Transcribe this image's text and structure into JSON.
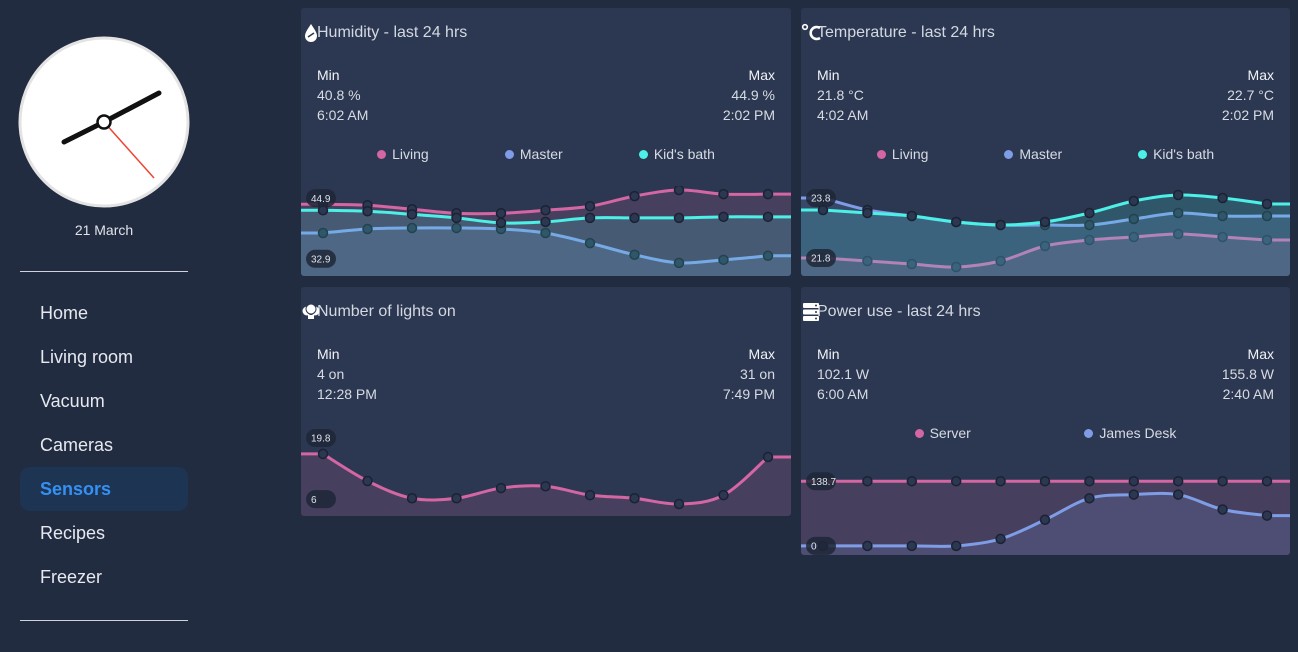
{
  "sidebar": {
    "date": "21 March",
    "nav": [
      "Home",
      "Living room",
      "Vacuum",
      "Cameras",
      "Sensors",
      "Recipes",
      "Freezer"
    ],
    "active": 4
  },
  "cards": [
    {
      "title": "Humidity - last 24 hrs",
      "min_label": "Min",
      "max_label": "Max",
      "min_value": "40.8 %",
      "min_time": "6:02 AM",
      "max_value": "44.9 %",
      "max_time": "2:02 PM",
      "chart_data": {
        "type": "line",
        "ylim": [
          29.5,
          47.3
        ],
        "yticks": [
          32.9,
          44.9
        ],
        "series": [
          {
            "name": "Living",
            "color": "#d466a3",
            "values": [
              43.7,
              43.5,
              42.7,
              41.9,
              41.9,
              42.5,
              43.3,
              45.3,
              46.5,
              45.7,
              45.7
            ]
          },
          {
            "name": "Master",
            "color": "#7f9de6",
            "values": [
              38.0,
              38.8,
              39.0,
              39.0,
              38.8,
              38.0,
              36.0,
              33.7,
              32.1,
              32.7,
              33.5
            ]
          },
          {
            "name": "Kid's bath",
            "color": "#4cf0e6",
            "values": [
              42.5,
              42.3,
              41.7,
              41.0,
              40.0,
              40.2,
              41.0,
              41.0,
              41.0,
              41.2,
              41.2
            ]
          }
        ]
      }
    },
    {
      "title": "Temperature - last 24 hrs",
      "min_label": "Min",
      "max_label": "Max",
      "min_value": "21.8 °C",
      "min_time": "4:02 AM",
      "max_value": "22.7 °C",
      "max_time": "2:02 PM",
      "chart_data": {
        "type": "line",
        "ylim": [
          21.2,
          24.2
        ],
        "yticks": [
          21.8,
          23.8
        ],
        "series": [
          {
            "name": "Living",
            "color": "#d466a3",
            "values": [
              21.8,
              21.7,
              21.6,
              21.5,
              21.7,
              22.2,
              22.4,
              22.5,
              22.6,
              22.5,
              22.4
            ]
          },
          {
            "name": "Master",
            "color": "#7f9de6",
            "values": [
              23.8,
              23.4,
              23.2,
              23.0,
              22.9,
              22.9,
              22.9,
              23.1,
              23.3,
              23.2,
              23.2
            ]
          },
          {
            "name": "Kid's bath",
            "color": "#4cf0e6",
            "values": [
              23.4,
              23.3,
              23.2,
              23.0,
              22.9,
              23.0,
              23.3,
              23.7,
              23.9,
              23.8,
              23.6
            ]
          }
        ]
      }
    },
    {
      "title": "Number of lights on",
      "min_label": "Min",
      "max_label": "Max",
      "min_value": "4 on",
      "min_time": "12:28 PM",
      "max_value": "31 on",
      "max_time": "7:49 PM",
      "chart_data": {
        "type": "line",
        "ylim": [
          2.2,
          22.5
        ],
        "yticks": [
          6,
          19.8
        ],
        "series": [
          {
            "color": "#d466a3",
            "values": [
              16.2,
              10.1,
              6.2,
              6.2,
              8.5,
              8.9,
              6.9,
              6.2,
              4.9,
              6.9,
              15.5
            ]
          }
        ]
      }
    },
    {
      "title": "Power use - last 24 hrs",
      "min_label": "Min",
      "max_label": "Max",
      "min_value": "102.1 W",
      "min_time": "6:00 AM",
      "max_value": "155.8 W",
      "max_time": "2:40 AM",
      "chart_data": {
        "type": "line",
        "ylim": [
          -19.5,
          173.4
        ],
        "yticks": [
          0,
          138.7
        ],
        "series": [
          {
            "name": "Server",
            "color": "#d466a3",
            "values": [
              138.7,
              138.7,
              138.7,
              138.7,
              138.7,
              138.7,
              138.7,
              138.7,
              138.7,
              138.7,
              138.7
            ]
          },
          {
            "name": "James Desk",
            "color": "#7f9de6",
            "values": [
              0,
              0,
              0,
              0,
              15,
              56,
              102,
              110,
              110,
              78,
              65
            ]
          }
        ]
      }
    }
  ]
}
